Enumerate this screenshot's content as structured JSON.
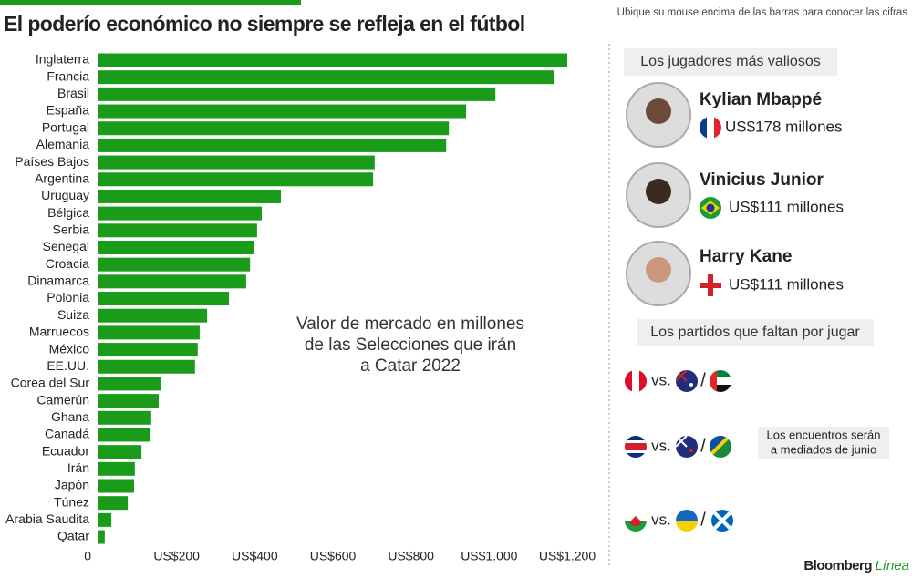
{
  "header": {
    "title": "El poderío económico no siempre se refleja en el fútbol",
    "hint": "Ubique su mouse encima de las barras para conocer las cifras"
  },
  "chart_data": {
    "type": "bar",
    "orientation": "horizontal",
    "annotation": [
      "Valor de mercado en millones",
      "de las Selecciones que irán",
      "a Catar 2022"
    ],
    "categories": [
      "Inglaterra",
      "Francia",
      "Brasil",
      "España",
      "Portugal",
      "Alemania",
      "Países Bajos",
      "Argentina",
      "Uruguay",
      "Bélgica",
      "Serbia",
      "Senegal",
      "Croacia",
      "Dinamarca",
      "Polonia",
      "Suiza",
      "Marruecos",
      "México",
      "EE.UU.",
      "Corea del Sur",
      "Camerún",
      "Ghana",
      "Canadá",
      "Ecuador",
      "Irán",
      "Japón",
      "Túnez",
      "Arabia Saudita",
      "Qatar"
    ],
    "values": [
      1200,
      1165,
      1016,
      941,
      897,
      890,
      707,
      703,
      467,
      418,
      406,
      399,
      388,
      378,
      334,
      278,
      259,
      254,
      247,
      159,
      154,
      135,
      133,
      110,
      93,
      91,
      75,
      33,
      16
    ],
    "color": "#1a9c1a",
    "xlim": [
      0,
      1200
    ],
    "xticks": [
      0,
      {
        "value": 200,
        "label": "US$200"
      },
      {
        "value": 400,
        "label": "US$400"
      },
      {
        "value": 600,
        "label": "US$600"
      },
      {
        "value": 800,
        "label": "US$800"
      },
      {
        "value": 1000,
        "label": "US$1.000"
      },
      {
        "value": 1200,
        "label": "US$1.200"
      }
    ]
  },
  "players": {
    "title": "Los jugadores más valiosos",
    "items": [
      {
        "name": "Kylian Mbappé",
        "value": "US$178 millones"
      },
      {
        "name": "Vinicius Junior",
        "value": "US$111 millones"
      },
      {
        "name": "Harry Kane",
        "value": "US$111 millones"
      }
    ]
  },
  "matches": {
    "title": "Los partidos que faltan por jugar",
    "vs": [
      "vs.",
      "vs.",
      "vs."
    ],
    "note": [
      "Los encuentros serán",
      "a mediados de junio"
    ]
  },
  "brand": [
    "Bloomberg",
    "Línea"
  ]
}
